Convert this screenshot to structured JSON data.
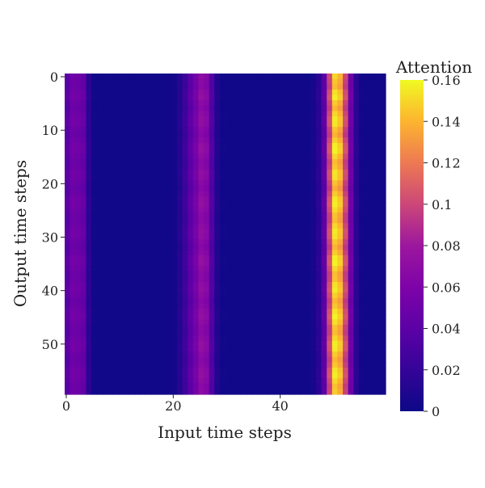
{
  "chart_data": {
    "type": "heatmap",
    "title": "",
    "xlabel": "Input time steps",
    "ylabel": "Output time steps",
    "rows": 60,
    "cols": 60,
    "x_ticks": [
      0,
      20,
      40
    ],
    "y_ticks": [
      0,
      10,
      20,
      30,
      40,
      50
    ],
    "colorbar": {
      "label": "Attention",
      "range": [
        0,
        0.16
      ],
      "ticks": [
        0,
        0.02,
        0.04,
        0.06,
        0.08,
        0.1,
        0.12,
        0.14,
        0.16
      ]
    },
    "colormap": "plasma",
    "column_profile": [
      0.04,
      0.052,
      0.05,
      0.045,
      0.015,
      0.003,
      0.002,
      0.002,
      0.002,
      0.002,
      0.002,
      0.002,
      0.002,
      0.002,
      0.002,
      0.002,
      0.002,
      0.002,
      0.002,
      0.002,
      0.004,
      0.012,
      0.025,
      0.04,
      0.055,
      0.07,
      0.065,
      0.035,
      0.01,
      0.003,
      0.002,
      0.002,
      0.002,
      0.002,
      0.002,
      0.002,
      0.002,
      0.002,
      0.002,
      0.002,
      0.002,
      0.002,
      0.002,
      0.002,
      0.002,
      0.002,
      0.005,
      0.015,
      0.04,
      0.1,
      0.15,
      0.14,
      0.1,
      0.05,
      0.015,
      0.003,
      0.002,
      0.002,
      0.002,
      0.002
    ],
    "row_modulation": [
      1.0,
      0.97,
      0.95,
      1.02,
      1.05,
      0.98,
      0.94,
      1.0,
      1.04,
      1.03,
      0.96,
      0.93,
      0.99,
      1.05,
      1.06,
      1.0,
      0.95,
      0.97,
      1.03,
      1.02,
      0.96,
      0.92,
      0.98,
      1.04,
      1.05,
      1.01,
      0.96,
      0.95,
      1.0,
      1.04,
      1.03,
      0.97,
      0.93,
      0.98,
      1.05,
      1.06,
      1.0,
      0.95,
      0.96,
      1.02,
      1.04,
      0.99,
      0.94,
      0.97,
      1.03,
      1.06,
      1.02,
      0.96,
      0.95,
      1.0,
      1.05,
      1.04,
      0.98,
      0.94,
      0.97,
      1.03,
      1.05,
      1.0,
      0.96,
      0.98
    ]
  }
}
